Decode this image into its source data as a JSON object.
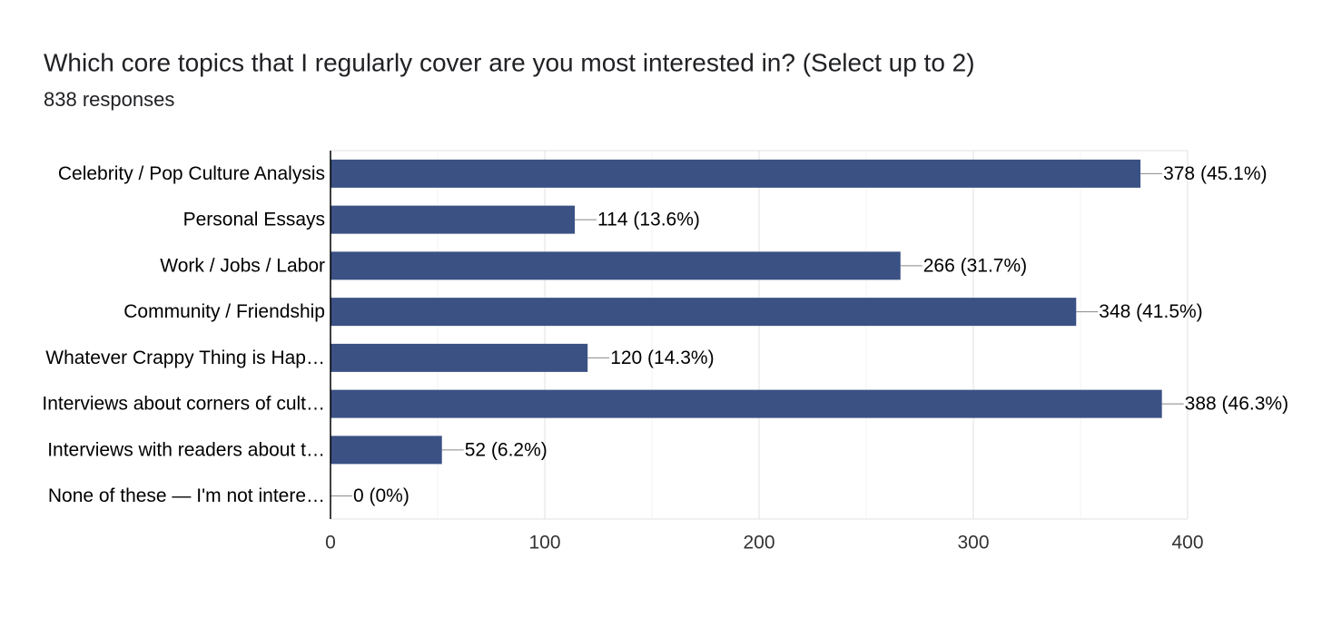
{
  "chart_data": {
    "type": "hbar",
    "title": "Which core topics that I regularly cover are you most interested in? (Select up to 2)",
    "subtitle": "838 responses",
    "categories": [
      "Celebrity / Pop Culture Analysis",
      "Personal Essays",
      "Work / Jobs / Labor",
      "Community / Friendship",
      "Whatever Crappy Thing is Hap…",
      "Interviews about corners of cult…",
      "Interviews with readers about t…",
      "None of these — I'm not intere…"
    ],
    "values": [
      378,
      114,
      266,
      348,
      120,
      388,
      52,
      0
    ],
    "value_labels": [
      "378 (45.1%)",
      "114 (13.6%)",
      "266 (31.7%)",
      "348 (41.5%)",
      "120 (14.3%)",
      "388 (46.3%)",
      "52 (6.2%)",
      "0 (0%)"
    ],
    "color": "#3b5184",
    "xlim": [
      0,
      400
    ],
    "xticks": [
      0,
      100,
      200,
      300,
      400
    ],
    "minor_xticks": [
      50,
      150,
      250,
      350
    ],
    "grid": true
  }
}
